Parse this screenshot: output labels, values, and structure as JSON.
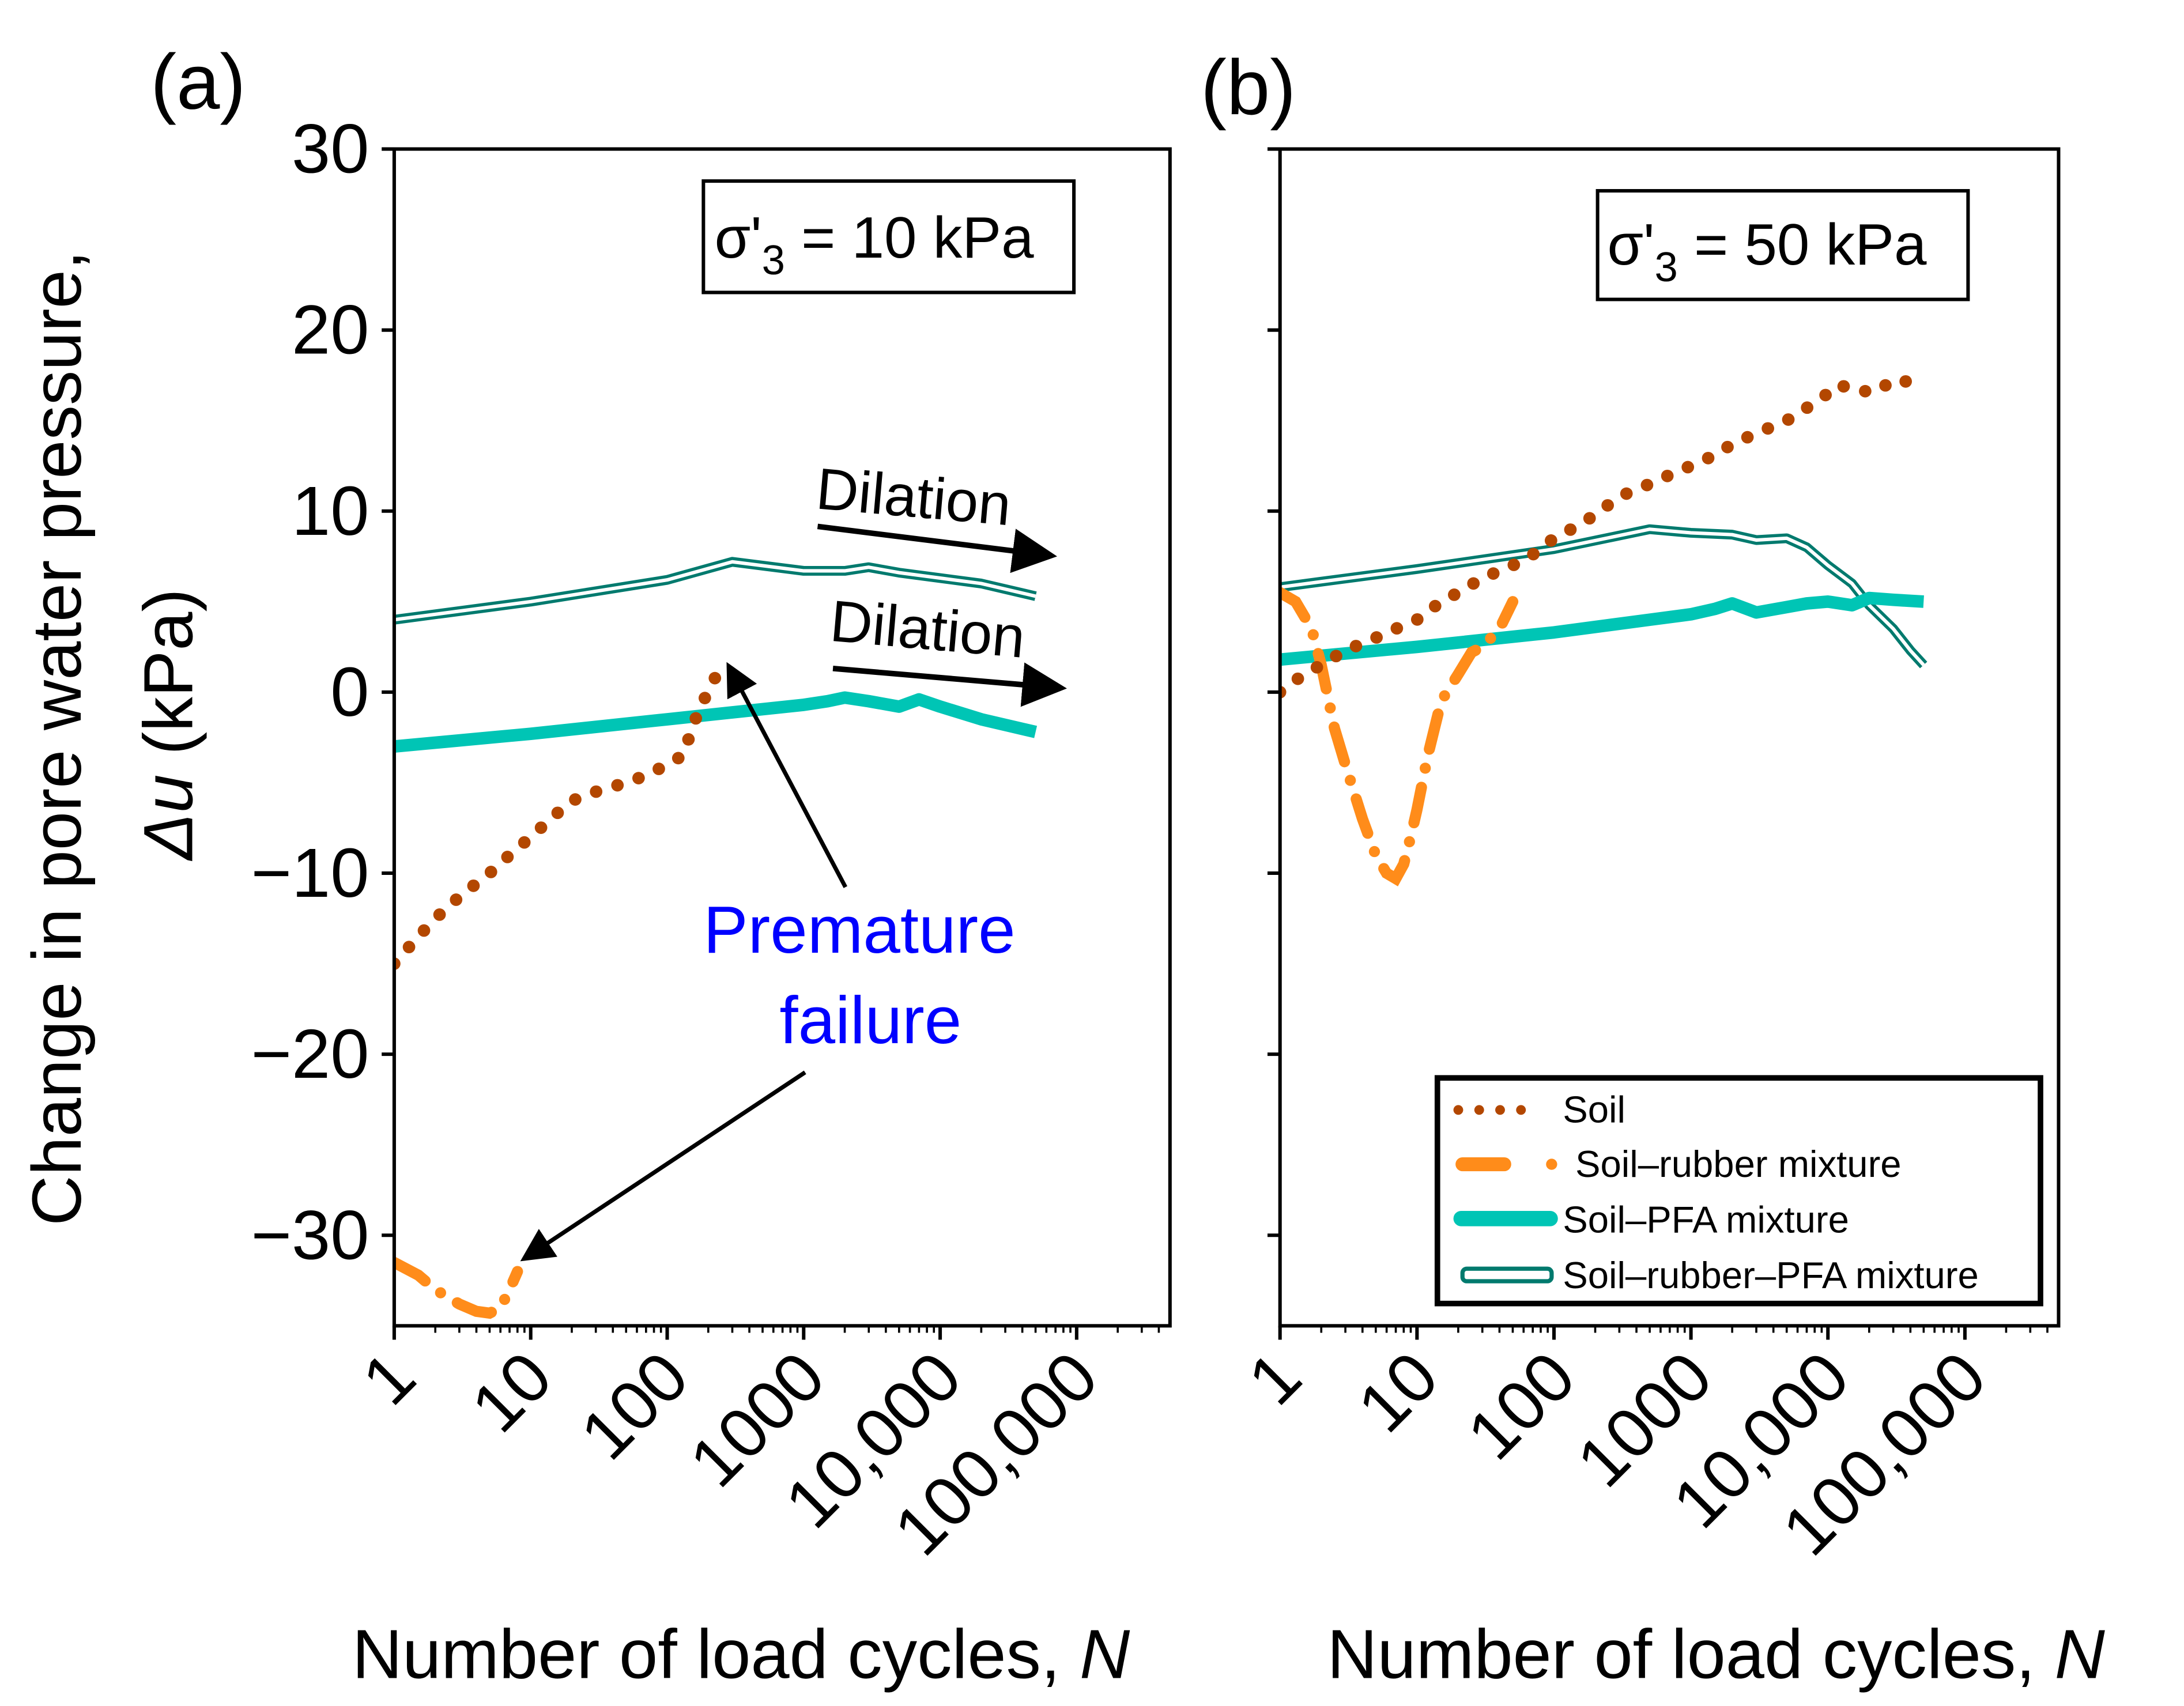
{
  "chart_data": [
    {
      "type": "line",
      "panel_label": "(a)",
      "condition": {
        "prefix": "σ'",
        "sub": "3",
        "suffix": " = 10 kPa"
      },
      "xlabel": "Number of load cycles, ",
      "xlabel_italic": "N",
      "ylabel_line1": "Change in pore water pressure,",
      "ylabel_line2_italic": "Δu",
      "ylabel_line2": " (kPa)",
      "xscale": "log",
      "xlim": [
        1,
        483000
      ],
      "ylim": [
        -35,
        30
      ],
      "xticks": [
        1,
        10,
        100,
        1000,
        10000,
        100000
      ],
      "xtick_labels": [
        "1",
        "10",
        "100",
        "1000",
        "10,000",
        "100,000"
      ],
      "yticks": [
        30,
        20,
        10,
        0,
        -10,
        -20,
        -30
      ],
      "ytick_labels": [
        "30",
        "20",
        "10",
        "0",
        "−10",
        "−20",
        "−30"
      ],
      "annotations": [
        {
          "text": "Dilation",
          "target_series": "Soil–rubber–PFA mixture"
        },
        {
          "text": "Dilation",
          "target_series": "Soil–PFA mixture"
        },
        {
          "text_lines": [
            "Premature",
            "failure"
          ],
          "color": "#0000FF",
          "targets": [
            "Soil",
            "Soil–rubber mixture"
          ]
        }
      ],
      "series": [
        {
          "name": "Soil",
          "x": [
            1,
            1.5,
            2,
            3,
            5,
            7,
            10,
            15,
            20,
            30,
            50,
            70,
            100,
            130,
            170,
            250
          ],
          "y": [
            -15,
            -13.5,
            -12.5,
            -11.3,
            -10,
            -9,
            -8,
            -6.8,
            -6,
            -5.5,
            -5,
            -4.6,
            -4,
            -3.5,
            -1,
            1.5
          ]
        },
        {
          "name": "Soil–rubber mixture",
          "x": [
            1,
            1.5,
            2,
            3,
            4,
            5,
            6,
            7,
            8
          ],
          "y": [
            -31.5,
            -32.2,
            -33,
            -33.8,
            -34.2,
            -34.3,
            -34,
            -33,
            -32
          ]
        },
        {
          "name": "Soil–PFA mixture",
          "x": [
            1,
            10,
            100,
            1000,
            1500,
            2000,
            3000,
            5000,
            7000,
            10000,
            20000,
            50000
          ],
          "y": [
            -3,
            -2.3,
            -1.5,
            -0.7,
            -0.5,
            -0.3,
            -0.5,
            -0.8,
            -0.4,
            -0.8,
            -1.5,
            -2.2
          ]
        },
        {
          "name": "Soil–rubber–PFA mixture",
          "x": [
            1,
            10,
            100,
            300,
            1000,
            2000,
            3000,
            5000,
            10000,
            20000,
            50000
          ],
          "y": [
            4,
            5,
            6.2,
            7.2,
            6.7,
            6.7,
            6.9,
            6.6,
            6.3,
            6,
            5.3
          ]
        }
      ]
    },
    {
      "type": "line",
      "panel_label": "(b)",
      "condition": {
        "prefix": "σ'",
        "sub": "3",
        "suffix": " = 50 kPa"
      },
      "xlabel": "Number of load cycles, ",
      "xlabel_italic": "N",
      "xscale": "log",
      "xlim": [
        1,
        483000
      ],
      "ylim": [
        -35,
        30
      ],
      "xticks": [
        1,
        10,
        100,
        1000,
        10000,
        100000
      ],
      "xtick_labels": [
        "1",
        "10",
        "100",
        "1000",
        "10,000",
        "100,000"
      ],
      "yticks": [
        30,
        20,
        10,
        0,
        -10,
        -20,
        -30
      ],
      "legend": {
        "placement": "lower-right",
        "entries": [
          "Soil",
          "Soil–rubber mixture",
          "Soil–PFA mixture",
          "Soil–rubber–PFA mixture"
        ]
      },
      "series": [
        {
          "name": "Soil",
          "x": [
            1,
            1.5,
            2,
            3,
            5,
            7,
            10,
            15,
            20,
            30,
            50,
            70,
            100,
            150,
            200,
            300,
            500,
            700,
            1000,
            1500,
            2000,
            3000,
            5000,
            7000,
            10000,
            12000,
            15000,
            20000,
            25000,
            30000,
            40000,
            50000
          ],
          "y": [
            0,
            1,
            1.5,
            2.3,
            3,
            3.5,
            4,
            5,
            5.5,
            6.3,
            7,
            7.6,
            8.5,
            9.2,
            9.8,
            10.8,
            11.5,
            12,
            12.5,
            13.1,
            13.7,
            14.3,
            15,
            15.7,
            16.5,
            17,
            16.7,
            16.6,
            17,
            16.8,
            17.3,
            17.7
          ]
        },
        {
          "name": "Soil–rubber mixture",
          "x": [
            1,
            1.3,
            1.7,
            2,
            2.5,
            3,
            4,
            5,
            6,
            7,
            8,
            9,
            10,
            12,
            15,
            20,
            25,
            30,
            40,
            50
          ],
          "y": [
            5.5,
            5,
            3.5,
            1.5,
            -2,
            -4,
            -7,
            -9,
            -10,
            -10.3,
            -9.5,
            -8,
            -6.5,
            -3.5,
            -0.5,
            1,
            2.2,
            2.5,
            3.5,
            5
          ]
        },
        {
          "name": "Soil–PFA mixture",
          "x": [
            1,
            10,
            100,
            500,
            1000,
            1500,
            2000,
            3000,
            5000,
            7000,
            10000,
            15000,
            20000,
            30000,
            50000
          ],
          "y": [
            1.8,
            2.5,
            3.3,
            4,
            4.3,
            4.6,
            4.9,
            4.4,
            4.7,
            4.9,
            5,
            4.8,
            5.2,
            5.1,
            5
          ]
        },
        {
          "name": "Soil–rubber–PFA mixture",
          "x": [
            1,
            10,
            100,
            500,
            1000,
            2000,
            3000,
            5000,
            7000,
            10000,
            15000,
            20000,
            30000,
            40000,
            50000
          ],
          "y": [
            5.8,
            6.8,
            7.9,
            9,
            8.8,
            8.7,
            8.4,
            8.5,
            8,
            7,
            6,
            4.8,
            3.5,
            2.3,
            1.5
          ]
        }
      ]
    }
  ],
  "colors": {
    "Soil": "#B34700",
    "Soil–rubber mixture": "#FF8C1A",
    "Soil–PFA mixture": "#00C5B5",
    "Soil–rubber–PFA mixture": "#007A6E",
    "annotation": "#0000FF"
  }
}
